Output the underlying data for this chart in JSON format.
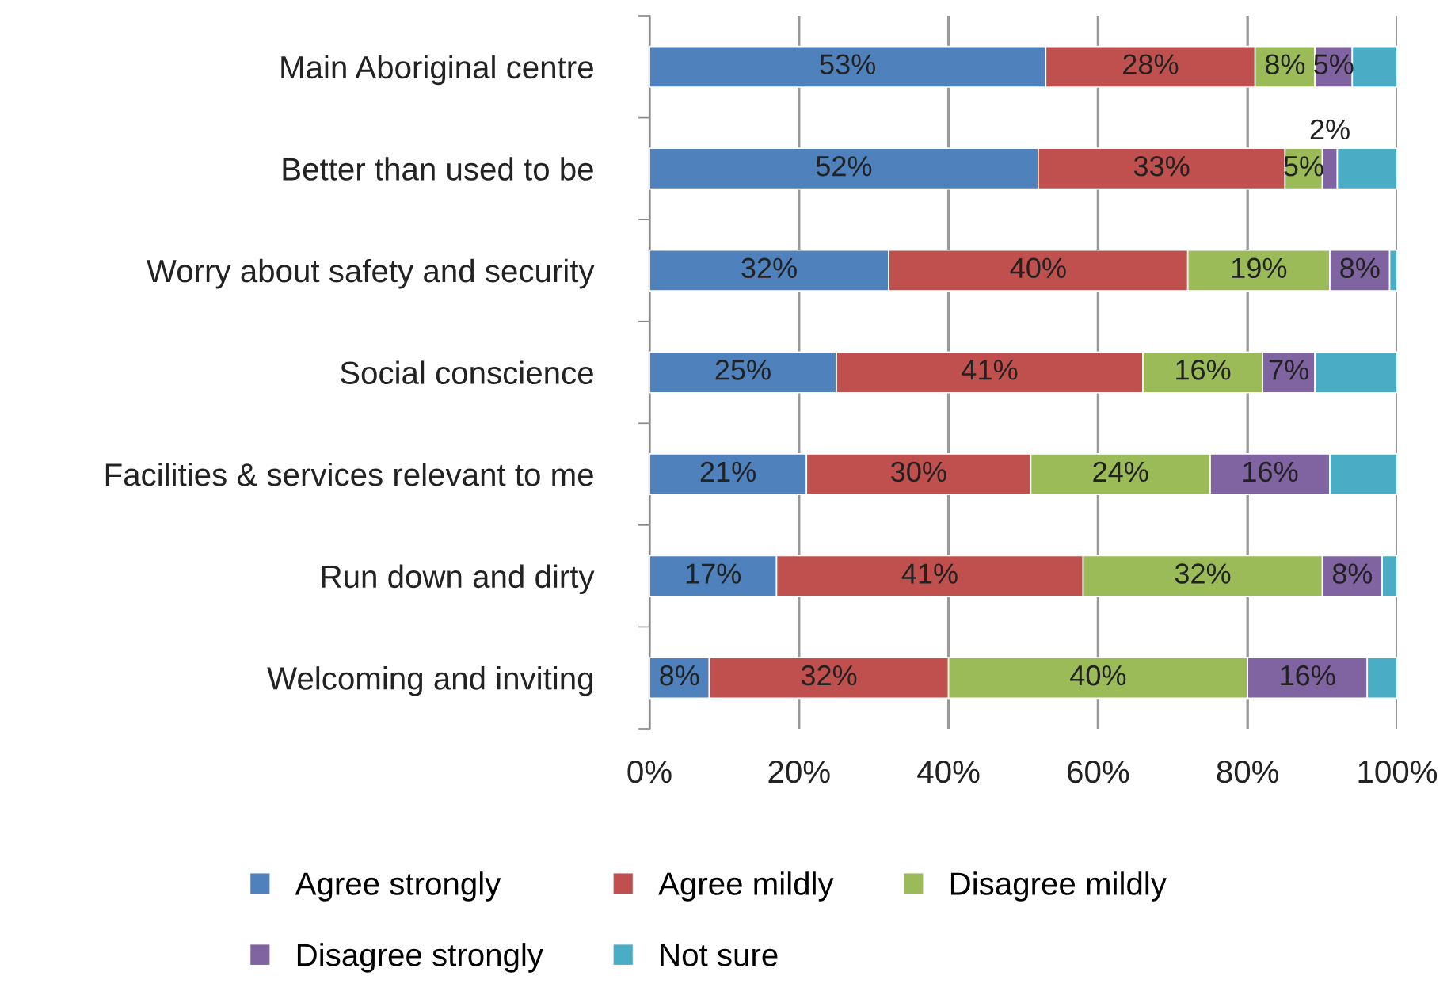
{
  "chart_data": {
    "type": "bar",
    "orientation": "horizontal",
    "stacked": true,
    "categories": [
      "Main Aboriginal centre",
      "Better than used to be",
      "Worry about safety and security",
      "Social conscience",
      "Facilities & services relevant to me",
      "Run down and dirty",
      "Welcoming and inviting"
    ],
    "series": [
      {
        "name": "Agree strongly",
        "color": "#4f81bd",
        "values": [
          53,
          52,
          32,
          25,
          21,
          17,
          8
        ],
        "value_labels": [
          "53%",
          "52%",
          "32%",
          "25%",
          "21%",
          "17%",
          "8%"
        ]
      },
      {
        "name": "Agree mildly",
        "color": "#c0504d",
        "values": [
          28,
          33,
          40,
          41,
          30,
          41,
          32
        ],
        "value_labels": [
          "28%",
          "33%",
          "40%",
          "41%",
          "30%",
          "41%",
          "32%"
        ]
      },
      {
        "name": "Disagree mildly",
        "color": "#9bbb59",
        "values": [
          8,
          5,
          19,
          16,
          24,
          32,
          40
        ],
        "value_labels": [
          "8%",
          "5%",
          "19%",
          "16%",
          "24%",
          "32%",
          "40%"
        ]
      },
      {
        "name": "Disagree strongly",
        "color": "#8064a2",
        "values": [
          5,
          2,
          8,
          7,
          16,
          8,
          16
        ],
        "value_labels": [
          "5%",
          "2%",
          "8%",
          "7%",
          "16%",
          "8%",
          "16%"
        ]
      },
      {
        "name": "Not sure",
        "color": "#4bacc6",
        "values": [
          6,
          8,
          1,
          11,
          9,
          2,
          4
        ],
        "value_labels": [
          null,
          null,
          null,
          null,
          null,
          null,
          null
        ]
      }
    ],
    "xlim": [
      0,
      100
    ],
    "xticks": [
      {
        "value": 0,
        "label": "0%"
      },
      {
        "value": 20,
        "label": "20%"
      },
      {
        "value": 40,
        "label": "40%"
      },
      {
        "value": 60,
        "label": "60%"
      },
      {
        "value": 80,
        "label": "80%"
      },
      {
        "value": 100,
        "label": "100%"
      }
    ],
    "grid": "x",
    "legend": "bottom"
  }
}
